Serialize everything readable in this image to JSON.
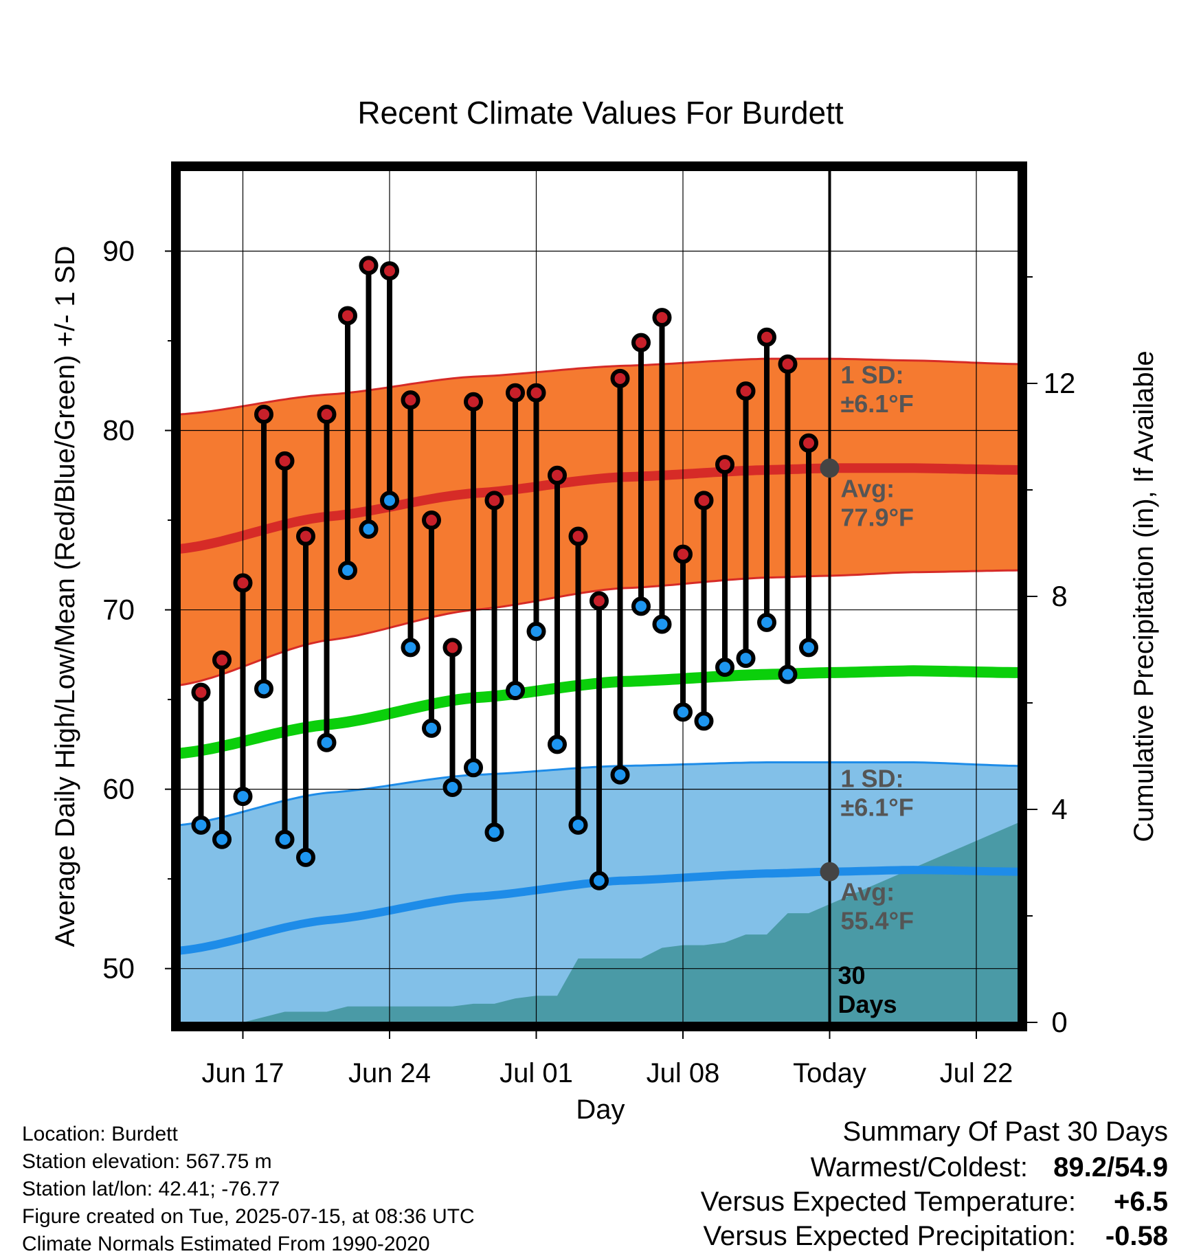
{
  "chart_data": {
    "type": "line",
    "title": "Recent Climate Values For Burdett",
    "xlabel": "Day",
    "ylabel": "Average Daily High/Low/Mean (Red/Blue/Green) +/- 1 SD",
    "y2label": "Cumulative Precipitation (in), If Available",
    "xlim": [
      "Jun 14",
      "Jul 24"
    ],
    "ylim": [
      47.0,
      94.5
    ],
    "y2lim": [
      0,
      16
    ],
    "x_ticks": [
      "Jun 17",
      "Jun 24",
      "Jul 01",
      "Jul 08",
      "Today",
      "Jul 22"
    ],
    "y_ticks": [
      50,
      60,
      70,
      80,
      90
    ],
    "y2_ticks": [
      0,
      4,
      8,
      12
    ],
    "grid": true,
    "colors": {
      "high_band": "#f57a30",
      "high_band_edge": "#d62b27",
      "high_mean": "#d62b27",
      "low_band": "#82c0e8",
      "low_band_edge": "#1e8ce8",
      "low_mean": "#1e8ce8",
      "mean": "#0bcf0b",
      "precip": "#4a9aa6",
      "high_dot": "#c8202a",
      "low_dot": "#1e96f0",
      "today_dot": "#444444",
      "annotation": "#555555"
    },
    "normals": {
      "x": [
        "Jun 14",
        "Jun 21",
        "Jun 28",
        "Jul 05",
        "Jul 12",
        "Jul 15",
        "Jul 19",
        "Jul 24"
      ],
      "high_mean": [
        73.4,
        75.2,
        76.5,
        77.4,
        77.8,
        77.9,
        77.9,
        77.8
      ],
      "high_upper": [
        80.9,
        82.0,
        83.0,
        83.6,
        84.0,
        84.0,
        83.9,
        83.7
      ],
      "high_lower": [
        65.8,
        68.3,
        70.0,
        71.2,
        71.8,
        71.9,
        72.1,
        72.2
      ],
      "mean": [
        62.0,
        63.6,
        65.1,
        66.0,
        66.4,
        66.5,
        66.6,
        66.5
      ],
      "low_mean": [
        51.0,
        52.7,
        54.0,
        54.9,
        55.3,
        55.4,
        55.5,
        55.4
      ],
      "low_upper": [
        58.0,
        59.8,
        60.8,
        61.3,
        61.5,
        61.5,
        61.5,
        61.3
      ],
      "low_lower": [
        47.0,
        47.0,
        47.0,
        47.0,
        47.0,
        47.0,
        47.0,
        47.0
      ]
    },
    "daily": {
      "dates": [
        "Jun 15",
        "Jun 16",
        "Jun 17",
        "Jun 18",
        "Jun 19",
        "Jun 20",
        "Jun 21",
        "Jun 22",
        "Jun 23",
        "Jun 24",
        "Jun 25",
        "Jun 26",
        "Jun 27",
        "Jun 28",
        "Jun 29",
        "Jun 30",
        "Jul 01",
        "Jul 02",
        "Jul 03",
        "Jul 04",
        "Jul 05",
        "Jul 06",
        "Jul 07",
        "Jul 08",
        "Jul 09",
        "Jul 10",
        "Jul 11",
        "Jul 12",
        "Jul 13",
        "Jul 14"
      ],
      "highs": [
        65.4,
        67.2,
        71.5,
        80.9,
        78.3,
        74.1,
        80.9,
        86.4,
        89.2,
        88.9,
        81.7,
        75.0,
        67.9,
        81.6,
        76.1,
        82.1,
        82.1,
        77.5,
        74.1,
        70.5,
        82.9,
        84.9,
        86.3,
        73.1,
        76.1,
        78.1,
        82.2,
        85.2,
        83.7,
        79.3
      ],
      "lows": [
        58.0,
        57.2,
        59.6,
        65.6,
        57.2,
        56.2,
        62.6,
        72.2,
        74.5,
        76.1,
        67.9,
        63.4,
        60.1,
        61.2,
        57.6,
        65.5,
        68.8,
        62.5,
        58.0,
        54.9,
        60.8,
        70.2,
        69.2,
        64.3,
        63.8,
        66.8,
        67.3,
        69.3,
        66.4,
        67.9
      ]
    },
    "today": {
      "label": "Today",
      "high_avg": 77.9,
      "low_avg": 55.4
    },
    "precip_cumulative": {
      "x": [
        "Jun 16",
        "Jun 17",
        "Jun 18",
        "Jun 19",
        "Jun 20",
        "Jun 21",
        "Jun 22",
        "Jun 23",
        "Jun 24",
        "Jun 25",
        "Jun 26",
        "Jun 27",
        "Jun 28",
        "Jun 29",
        "Jun 30",
        "Jul 01",
        "Jul 02",
        "Jul 03",
        "Jul 04",
        "Jul 05",
        "Jul 06",
        "Jul 07",
        "Jul 08",
        "Jul 09",
        "Jul 10",
        "Jul 11",
        "Jul 12",
        "Jul 13",
        "Jul 14",
        "Jul 24"
      ],
      "values": [
        0.0,
        0.0,
        0.1,
        0.2,
        0.2,
        0.2,
        0.3,
        0.3,
        0.3,
        0.3,
        0.3,
        0.3,
        0.35,
        0.35,
        0.45,
        0.5,
        0.5,
        1.2,
        1.2,
        1.2,
        1.2,
        1.4,
        1.45,
        1.45,
        1.5,
        1.65,
        1.65,
        2.05,
        2.05,
        3.75
      ]
    },
    "annotations": {
      "high_sd_line1": "1 SD:",
      "high_sd_line2": "±6.1°F",
      "high_avg_line1": "Avg:",
      "high_avg_line2": "77.9°F",
      "low_sd_line1": "1 SD:",
      "low_sd_line2": "±6.1°F",
      "low_avg_line1": "Avg:",
      "low_avg_line2": "55.4°F",
      "days_line1": "30",
      "days_line2": "Days"
    }
  },
  "footer": {
    "location": "Location: Burdett",
    "elevation": "Station elevation: 567.75 m",
    "latlon": "Station lat/lon: 42.41; -76.77",
    "created": "Figure created on Tue, 2025-07-15, at 08:36 UTC",
    "normals": "Climate Normals Estimated From 1990-2020"
  },
  "summary": {
    "title": "Summary Of Past 30 Days",
    "warm_cold_label": "Warmest/Coldest:",
    "warm_cold_value": "89.2/54.9",
    "temp_label": "Versus Expected Temperature:",
    "temp_value": "+6.5",
    "temp_color": "#c8202a",
    "precip_label": "Versus Expected Precipitation:",
    "precip_value": "-0.58",
    "precip_color": "#a0522d"
  }
}
